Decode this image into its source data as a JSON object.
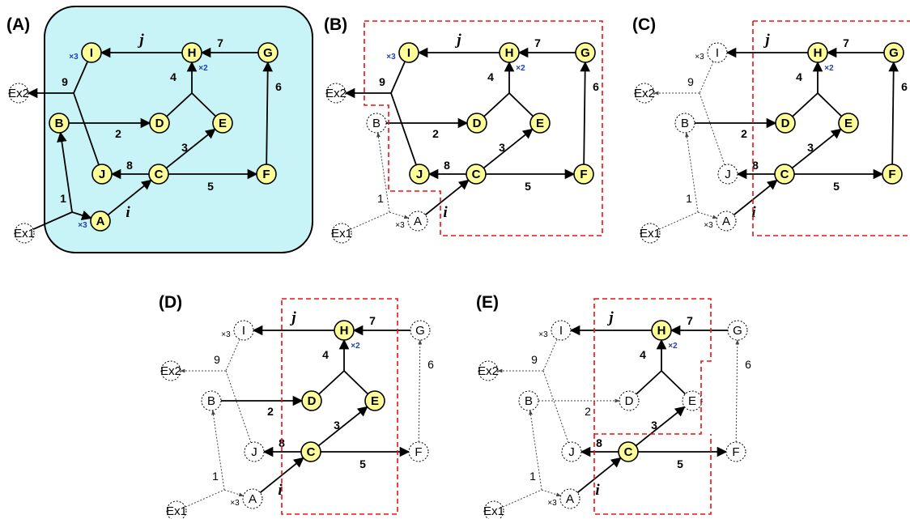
{
  "colors": {
    "highlight_fill": "#ffff99",
    "node_stroke": "#000000",
    "region_fill": "#c9f4f7",
    "dashed_box": "#ee1111",
    "multiplier": "#1f3fb0"
  },
  "panels": [
    {
      "label": "(A)",
      "highlighted_nodes": [
        "I",
        "H",
        "G",
        "B",
        "D",
        "E",
        "J",
        "C",
        "F",
        "A"
      ],
      "highlighted_edges": [
        "j",
        "7",
        "4",
        "6",
        "9",
        "2",
        "3",
        "8",
        "5",
        "1",
        "i",
        "ex2"
      ],
      "multiplier_style": "blue"
    },
    {
      "label": "(B)",
      "highlighted_nodes": [
        "I",
        "H",
        "G",
        "D",
        "E",
        "J",
        "C",
        "F"
      ],
      "highlighted_edges": [
        "j",
        "7",
        "4",
        "6",
        "9",
        "2",
        "3",
        "8",
        "5",
        "i",
        "ex2"
      ],
      "multiplier_style": "mixed"
    },
    {
      "label": "(C)",
      "highlighted_nodes": [
        "H",
        "G",
        "D",
        "E",
        "C",
        "F"
      ],
      "highlighted_edges": [
        "j",
        "7",
        "4",
        "6",
        "2",
        "3",
        "8",
        "5",
        "i"
      ],
      "multiplier_style": "mixed2"
    },
    {
      "label": "(D)",
      "highlighted_nodes": [
        "H",
        "D",
        "E",
        "C"
      ],
      "highlighted_edges": [
        "j",
        "7",
        "4",
        "2",
        "3",
        "8",
        "5",
        "i"
      ],
      "multiplier_style": "mixed2"
    },
    {
      "label": "(E)",
      "highlighted_nodes": [
        "H",
        "C"
      ],
      "highlighted_edges": [
        "j",
        "7",
        "4",
        "3",
        "8",
        "5",
        "i"
      ],
      "multiplier_style": "mixed2"
    }
  ],
  "node_names": [
    "I",
    "H",
    "G",
    "B",
    "D",
    "E",
    "J",
    "C",
    "F",
    "A",
    "Ex1",
    "Ex2"
  ],
  "edge_labels": {
    "j": "j",
    "7": "7",
    "4": "4",
    "6": "6",
    "9": "9",
    "2": "2",
    "3": "3",
    "8": "8",
    "5": "5",
    "1": "1",
    "i": "i"
  },
  "multipliers": {
    "I": "×3",
    "H": "×2",
    "A": "×3"
  }
}
